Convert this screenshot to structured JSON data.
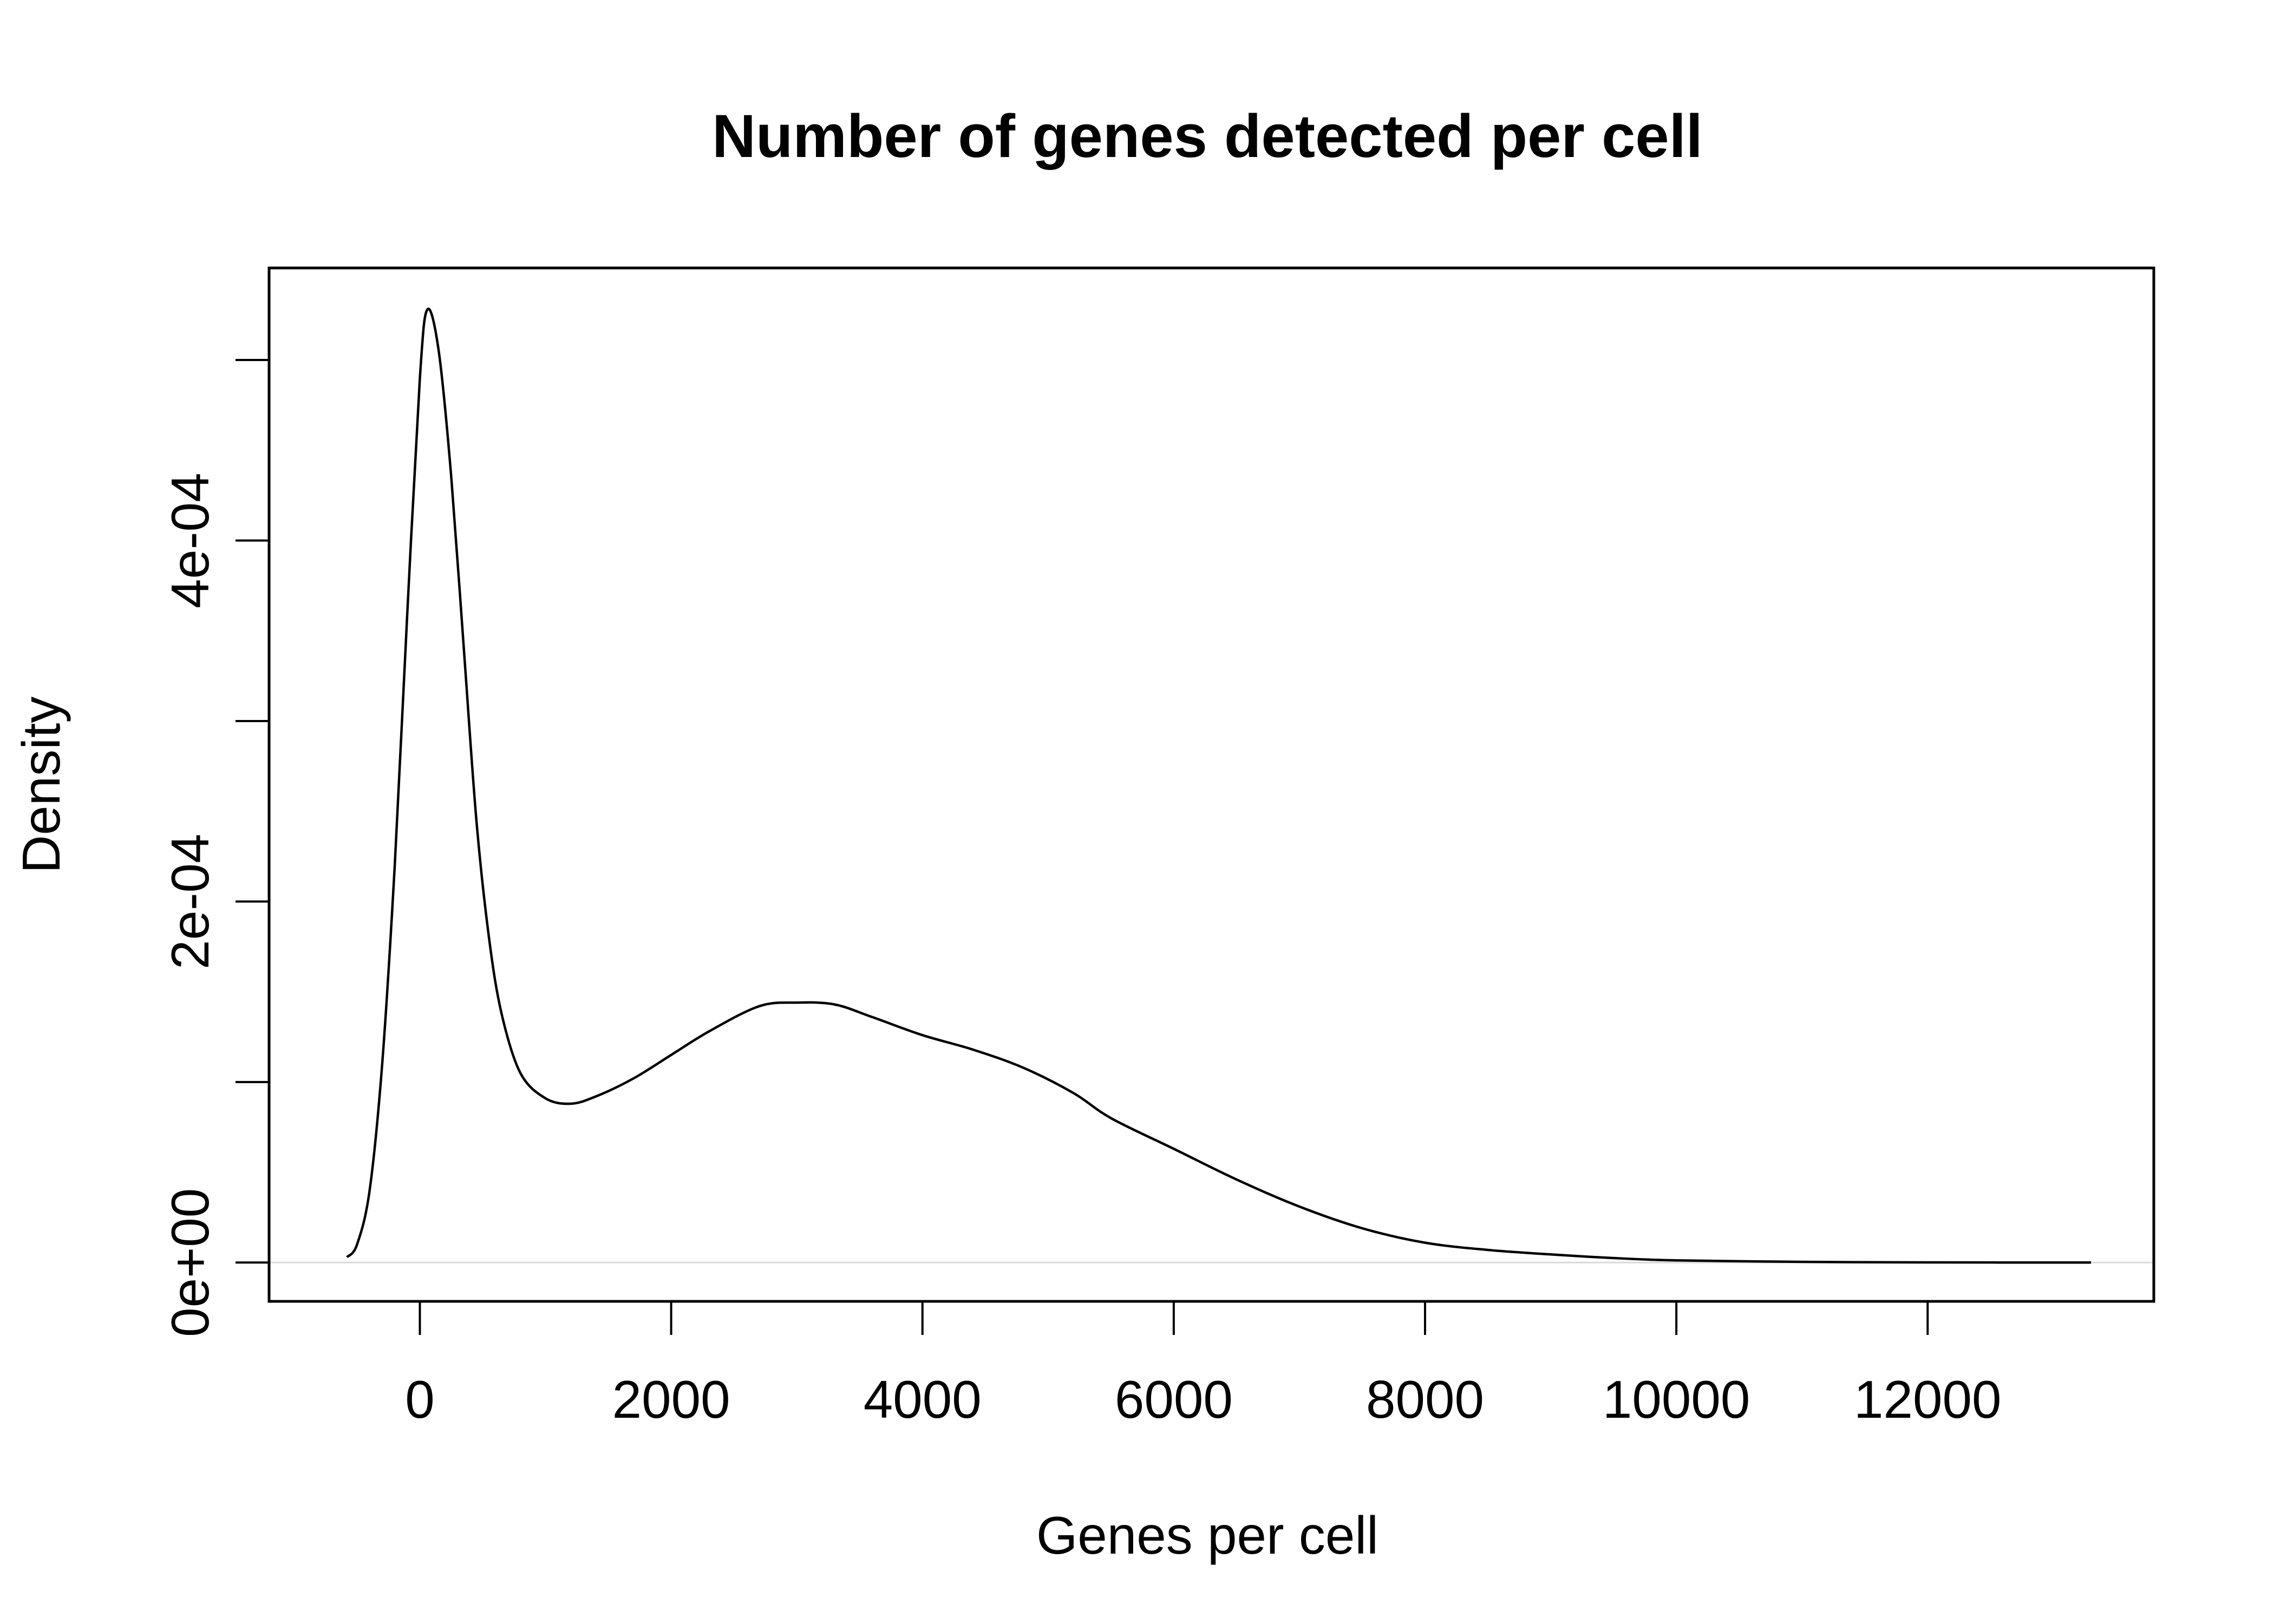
{
  "chart_data": {
    "type": "line",
    "title": "Number of genes detected per cell",
    "xlabel": "Genes per cell",
    "ylabel": "Density",
    "xlim": [
      -1200,
      13800
    ],
    "ylim": [
      -2.15e-05,
      0.000551
    ],
    "x_ticks": [
      0,
      2000,
      4000,
      6000,
      8000,
      10000,
      12000
    ],
    "x_tick_labels": [
      "0",
      "2000",
      "4000",
      "6000",
      "8000",
      "10000",
      "12000"
    ],
    "y_ticks": [
      0,
      0.0001,
      0.0002,
      0.0003,
      0.0004,
      0.0005
    ],
    "y_tick_labels": [
      "0e+00",
      "",
      "2e-04",
      "",
      "4e-04",
      ""
    ],
    "baseline": 0,
    "grid": false,
    "legend": "none",
    "series": [
      {
        "color": "#000000",
        "x": [
          -580,
          -500,
          -400,
          -300,
          -200,
          -100,
          0,
          60,
          150,
          250,
          350,
          450,
          550,
          650,
          800,
          1000,
          1200,
          1400,
          1700,
          2000,
          2300,
          2700,
          3000,
          3300,
          3600,
          4000,
          4400,
          4800,
          5200,
          5500,
          6000,
          6500,
          7000,
          7500,
          8000,
          8500,
          9000,
          9500,
          10000,
          11000,
          12000,
          13300
        ],
        "y": [
          3e-06,
          1e-05,
          4e-05,
          0.00011,
          0.00022,
          0.00036,
          0.00049,
          0.000528,
          0.000505,
          0.000435,
          0.00034,
          0.000245,
          0.00018,
          0.000138,
          0.000105,
          9.1e-05,
          8.8e-05,
          9.2e-05,
          0.000102,
          0.000115,
          0.000128,
          0.000142,
          0.000144,
          0.000143,
          0.000136,
          0.000126,
          0.000118,
          0.000108,
          9.4e-05,
          8e-05,
          6.3e-05,
          4.6e-05,
          3.1e-05,
          1.9e-05,
          1.1e-05,
          7e-06,
          4.5e-06,
          2.5e-06,
          1.2e-06,
          4e-07,
          1e-07,
          0.0
        ]
      }
    ]
  }
}
